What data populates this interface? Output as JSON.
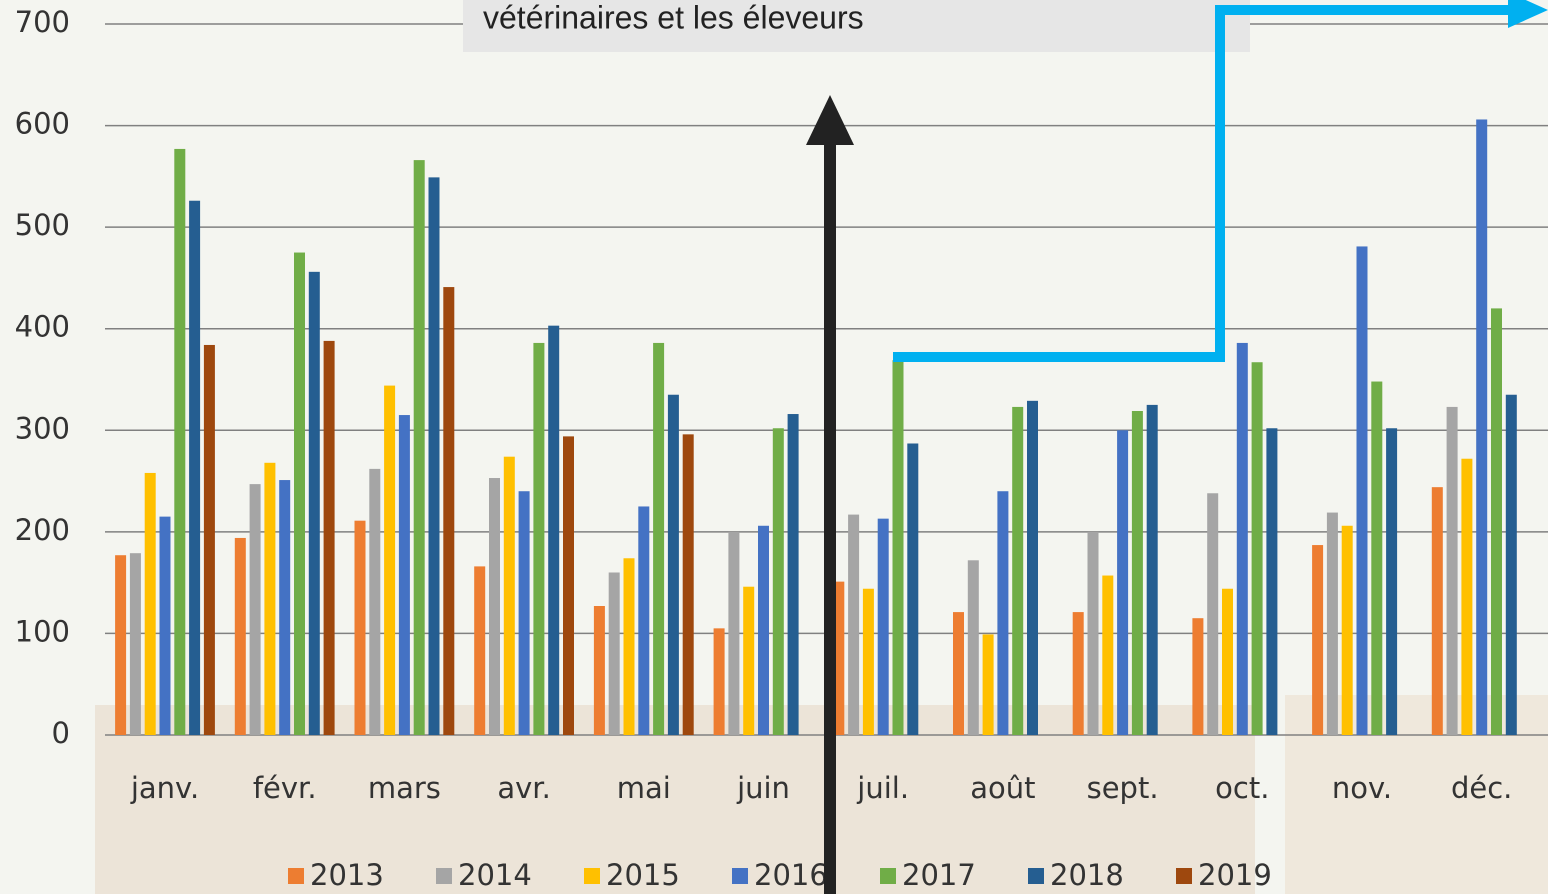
{
  "chart_data": {
    "type": "bar",
    "annotations": [
      "vétérinaires et les éleveurs"
    ],
    "categories": [
      "janv.",
      "févr.",
      "mars",
      "avr.",
      "mai",
      "juin",
      "juil.",
      "août",
      "sept.",
      "oct.",
      "nov.",
      "déc."
    ],
    "series": [
      {
        "name": "2013",
        "color": "#ed7d31",
        "values": [
          177,
          194,
          211,
          166,
          127,
          105,
          151,
          121,
          121,
          115,
          187,
          244
        ]
      },
      {
        "name": "2014",
        "color": "#a5a5a5",
        "values": [
          179,
          247,
          262,
          253,
          160,
          200,
          217,
          172,
          200,
          238,
          219,
          323
        ]
      },
      {
        "name": "2015",
        "color": "#ffc000",
        "values": [
          258,
          268,
          344,
          274,
          174,
          146,
          144,
          99,
          157,
          144,
          206,
          272
        ]
      },
      {
        "name": "2016",
        "color": "#4472c4",
        "values": [
          215,
          251,
          315,
          240,
          225,
          206,
          213,
          240,
          300,
          386,
          481,
          606
        ]
      },
      {
        "name": "2017",
        "color": "#70ad47",
        "values": [
          577,
          475,
          566,
          386,
          386,
          302,
          369,
          323,
          319,
          367,
          348,
          420
        ]
      },
      {
        "name": "2018",
        "color": "#255e91",
        "values": [
          526,
          456,
          549,
          403,
          335,
          316,
          287,
          329,
          325,
          302,
          302,
          335
        ]
      },
      {
        "name": "2019",
        "color": "#9e480e",
        "values": [
          384,
          388,
          441,
          294,
          296,
          null,
          null,
          null,
          null,
          null,
          null,
          null
        ]
      }
    ],
    "ylim": [
      0,
      700
    ],
    "yticks": [
      0,
      100,
      200,
      300,
      400,
      500,
      600,
      700
    ],
    "grid": true
  }
}
